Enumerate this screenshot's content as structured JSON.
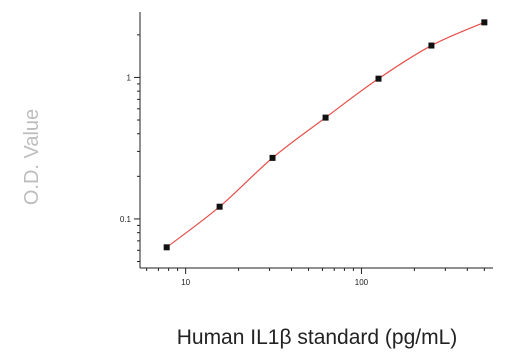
{
  "chart_data": {
    "type": "scatter",
    "xlabel": "Human IL1β standard (pg/mL)",
    "ylabel": "O.D. Value",
    "xscale": "log",
    "yscale": "log",
    "xlim": [
      5.5,
      560
    ],
    "ylim": [
      0.045,
      2.9
    ],
    "xticks": [
      {
        "value": 10,
        "label": "10"
      },
      {
        "value": 100,
        "label": "100"
      }
    ],
    "yticks": [
      {
        "value": 0.1,
        "label": "0.1"
      },
      {
        "value": 1,
        "label": "1"
      }
    ],
    "grid": false,
    "legend": "none",
    "series": [
      {
        "x": [
          7.8,
          15.6,
          31.2,
          62.5,
          125,
          250,
          500
        ],
        "y": [
          0.063,
          0.122,
          0.27,
          0.52,
          0.98,
          1.68,
          2.45
        ],
        "marker_color": "#111111",
        "fit_curve_color": "#e8504a"
      }
    ]
  }
}
